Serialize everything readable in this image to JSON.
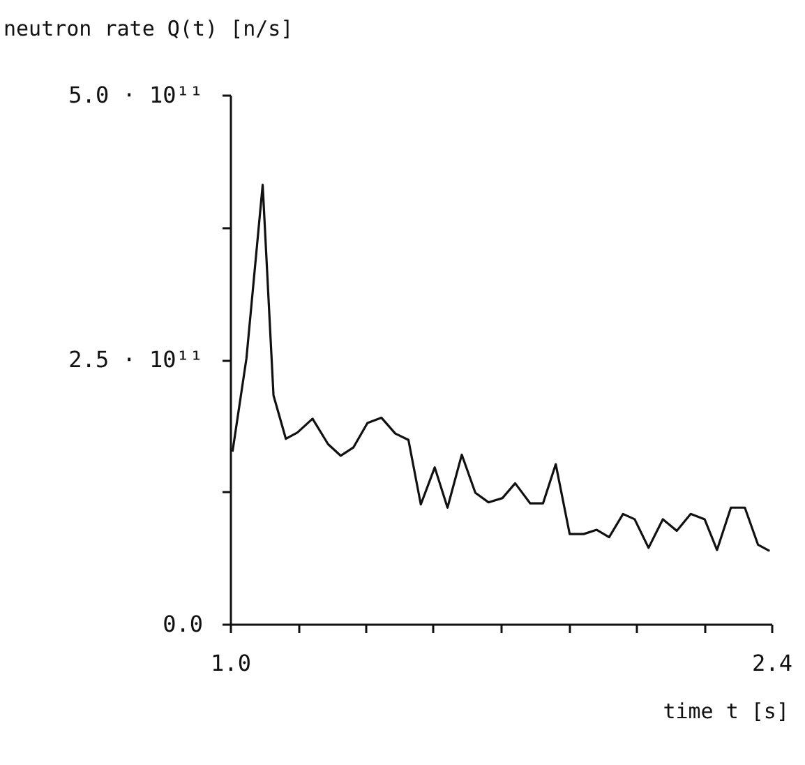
{
  "chart_data": {
    "type": "line",
    "ylabel": "neutron rate Q(t)  [n/s]",
    "xlabel": "time t [s]",
    "x": [
      1.006,
      1.042,
      1.084,
      1.112,
      1.144,
      1.174,
      1.213,
      1.253,
      1.286,
      1.319,
      1.355,
      1.391,
      1.427,
      1.461,
      1.493,
      1.529,
      1.562,
      1.599,
      1.634,
      1.668,
      1.704,
      1.737,
      1.776,
      1.809,
      1.842,
      1.878,
      1.914,
      1.948,
      1.98,
      2.016,
      2.046,
      2.082,
      2.119,
      2.155,
      2.191,
      2.227,
      2.259,
      2.295,
      2.331,
      2.365,
      2.395
    ],
    "series": [
      {
        "color": "#111111",
        "values": [
          163000000000.0,
          251000000000.0,
          415000000000.0,
          216000000000.0,
          175000000000.0,
          181000000000.0,
          194000000000.0,
          170000000000.0,
          159000000000.0,
          167000000000.0,
          190000000000.0,
          195000000000.0,
          180000000000.0,
          174000000000.0,
          113000000000.0,
          148000000000.0,
          110000000000.0,
          160000000000.0,
          124000000000.0,
          115000000000.0,
          119000000000.0,
          133000000000.0,
          114000000000.0,
          114000000000.0,
          151000000000.0,
          85000000000.0,
          85000000000.0,
          89000000000.0,
          82000000000.0,
          104000000000.0,
          99000000000.0,
          72000000000.0,
          99000000000.0,
          88000000000.0,
          104000000000.0,
          99000000000.0,
          70000000000.0,
          110000000000.0,
          110000000000.0,
          75000000000.0,
          69000000000.0
        ]
      }
    ],
    "xlim": [
      1.0,
      2.4
    ],
    "xticks": [
      {
        "value": 1.0,
        "label": "1.0"
      },
      {
        "value": 1.175,
        "label": null
      },
      {
        "value": 1.35,
        "label": null
      },
      {
        "value": 1.525,
        "label": null
      },
      {
        "value": 1.7,
        "label": null
      },
      {
        "value": 1.875,
        "label": null
      },
      {
        "value": 2.05,
        "label": null
      },
      {
        "value": 2.225,
        "label": null
      },
      {
        "value": 2.4,
        "label": "2.4"
      }
    ],
    "ylim": [
      0,
      500000000000.0
    ],
    "yticks": [
      {
        "value": 0,
        "label": "0.0"
      },
      {
        "value": 125000000000.0,
        "label": null
      },
      {
        "value": 250000000000.0,
        "label": "2.5 · 10¹¹"
      },
      {
        "value": 375000000000.0,
        "label": null
      },
      {
        "value": 500000000000.0,
        "label": "5.0 · 10¹¹"
      }
    ],
    "grid": false
  }
}
